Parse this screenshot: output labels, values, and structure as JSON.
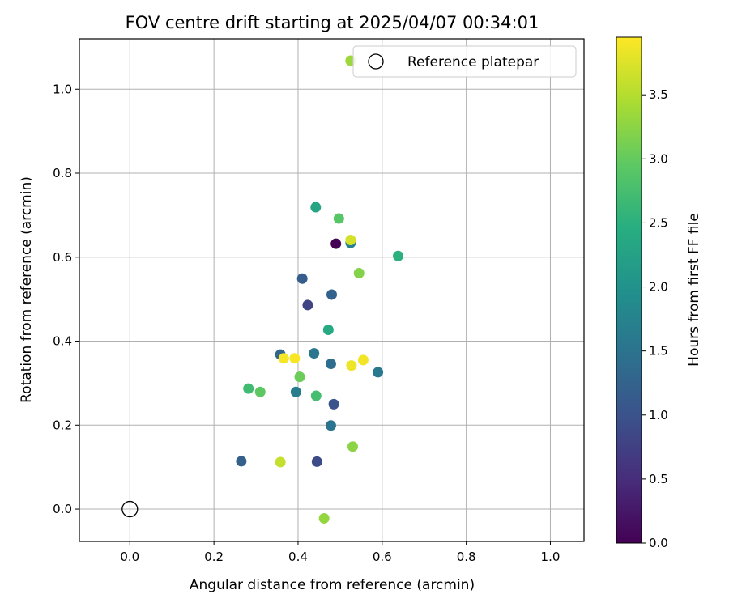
{
  "chart_data": {
    "type": "scatter",
    "title": "FOV centre drift starting at 2025/04/07 00:34:01",
    "xlabel": "Angular distance from reference (arcmin)",
    "ylabel": "Rotation from reference (arcmin)",
    "xlim": [
      -0.12,
      1.08
    ],
    "ylim": [
      -0.077,
      1.12
    ],
    "xticks": [
      0.0,
      0.2,
      0.4,
      0.6,
      0.8,
      1.0
    ],
    "xtick_labels": [
      "0.0",
      "0.2",
      "0.4",
      "0.6",
      "0.8",
      "1.0"
    ],
    "yticks": [
      0.0,
      0.2,
      0.4,
      0.6,
      0.8,
      1.0
    ],
    "ytick_labels": [
      "0.0",
      "0.2",
      "0.4",
      "0.6",
      "0.8",
      "1.0"
    ],
    "grid": true,
    "legend": {
      "placement": "top-right",
      "label": "Reference platepar"
    },
    "reference_point": {
      "x": 0.0,
      "y": 0.0
    },
    "colorbar": {
      "label": "Hours from first FF file",
      "range": [
        0.0,
        3.95
      ],
      "ticks": [
        0.0,
        0.5,
        1.0,
        1.5,
        2.0,
        2.5,
        3.0,
        3.5
      ],
      "tick_labels": [
        "0.0",
        "0.5",
        "1.0",
        "1.5",
        "2.0",
        "2.5",
        "3.0",
        "3.5"
      ],
      "colormap": "viridis"
    },
    "points": [
      {
        "x": 0.49,
        "y": 0.632,
        "h": 0.0
      },
      {
        "x": 0.423,
        "y": 0.486,
        "h": 0.8
      },
      {
        "x": 0.445,
        "y": 0.113,
        "h": 0.9
      },
      {
        "x": 0.485,
        "y": 0.25,
        "h": 1.0
      },
      {
        "x": 0.41,
        "y": 0.549,
        "h": 1.15
      },
      {
        "x": 0.265,
        "y": 0.114,
        "h": 1.2
      },
      {
        "x": 0.48,
        "y": 0.511,
        "h": 1.25
      },
      {
        "x": 0.358,
        "y": 0.368,
        "h": 1.3
      },
      {
        "x": 0.478,
        "y": 0.346,
        "h": 1.4
      },
      {
        "x": 0.478,
        "y": 0.199,
        "h": 1.5
      },
      {
        "x": 0.438,
        "y": 0.371,
        "h": 1.55
      },
      {
        "x": 0.59,
        "y": 0.326,
        "h": 1.6
      },
      {
        "x": 0.395,
        "y": 0.279,
        "h": 1.65
      },
      {
        "x": 0.525,
        "y": 0.634,
        "h": 1.7
      },
      {
        "x": 0.442,
        "y": 0.719,
        "h": 2.3
      },
      {
        "x": 0.472,
        "y": 0.427,
        "h": 2.4
      },
      {
        "x": 0.638,
        "y": 0.603,
        "h": 2.5
      },
      {
        "x": 0.282,
        "y": 0.287,
        "h": 2.7
      },
      {
        "x": 0.443,
        "y": 0.27,
        "h": 2.75
      },
      {
        "x": 0.497,
        "y": 0.692,
        "h": 2.9
      },
      {
        "x": 0.31,
        "y": 0.279,
        "h": 2.95
      },
      {
        "x": 0.404,
        "y": 0.315,
        "h": 3.05
      },
      {
        "x": 0.545,
        "y": 0.562,
        "h": 3.2
      },
      {
        "x": 0.53,
        "y": 0.149,
        "h": 3.25
      },
      {
        "x": 0.462,
        "y": -0.022,
        "h": 3.3
      },
      {
        "x": 0.525,
        "y": 1.068,
        "h": 3.35
      },
      {
        "x": 0.358,
        "y": 0.112,
        "h": 3.6
      },
      {
        "x": 0.525,
        "y": 0.641,
        "h": 3.7
      },
      {
        "x": 0.527,
        "y": 0.342,
        "h": 3.85
      },
      {
        "x": 0.555,
        "y": 0.355,
        "h": 3.88
      },
      {
        "x": 0.366,
        "y": 0.359,
        "h": 3.9
      },
      {
        "x": 0.392,
        "y": 0.359,
        "h": 3.92
      }
    ]
  }
}
